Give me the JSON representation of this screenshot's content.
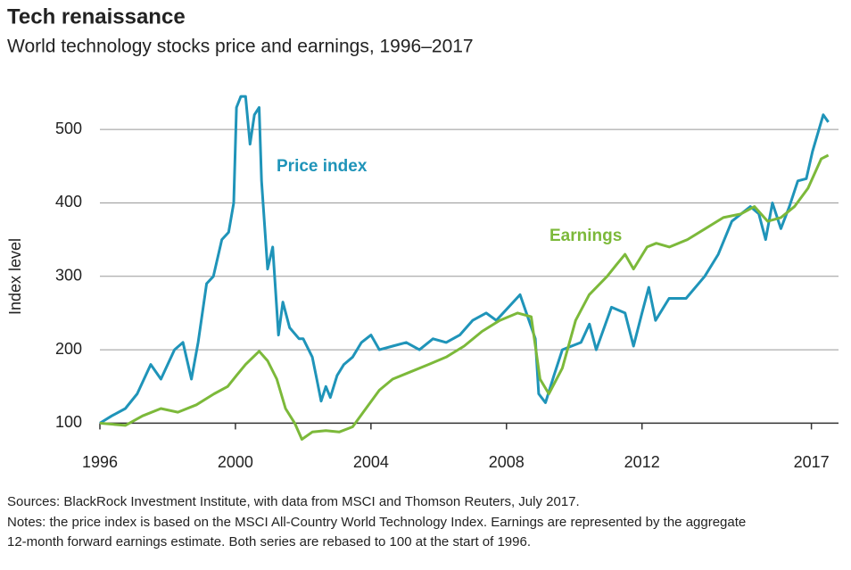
{
  "chart_data": {
    "type": "line",
    "title": "Tech renaissance",
    "subtitle": "World technology stocks price and earnings, 1996–2017",
    "ylabel": "Index level",
    "xlim": [
      1996,
      2017.8
    ],
    "xticks": [
      1996,
      2000,
      2004,
      2008,
      2012,
      2017
    ],
    "ylim": [
      75,
      550
    ],
    "yticks": [
      100,
      200,
      300,
      400,
      500
    ],
    "grid": true,
    "series": [
      {
        "name": "Price index",
        "color": "#1f94b9",
        "x": [
          1996,
          1996.35,
          1996.75,
          1997.1,
          1997.5,
          1997.8,
          1998.2,
          1998.45,
          1998.7,
          1998.9,
          1999.15,
          1999.35,
          1999.6,
          1999.8,
          1999.95,
          2000.03,
          2000.16,
          2000.3,
          2000.43,
          2000.56,
          2000.7,
          2000.77,
          2000.95,
          2001.1,
          2001.27,
          2001.4,
          2001.6,
          2001.88,
          2002.0,
          2002.27,
          2002.4,
          2002.53,
          2002.67,
          2002.8,
          2003.0,
          2003.2,
          2003.46,
          2003.72,
          2004.0,
          2004.25,
          2004.64,
          2005.04,
          2005.43,
          2005.83,
          2006.22,
          2006.62,
          2007.0,
          2007.4,
          2007.7,
          2008.4,
          2008.7,
          2008.85,
          2008.95,
          2009.15,
          2009.4,
          2009.65,
          2010.2,
          2010.45,
          2010.65,
          2011.1,
          2011.5,
          2011.75,
          2012.0,
          2012.2,
          2012.4,
          2012.8,
          2013.3,
          2013.85,
          2014.25,
          2014.65,
          2015.2,
          2015.45,
          2015.65,
          2015.85,
          2016.1,
          2016.35,
          2016.6,
          2016.85,
          2017.03,
          2017.35,
          2017.5
        ],
        "values": [
          100,
          110,
          120,
          140,
          180,
          160,
          200,
          210,
          160,
          210,
          290,
          300,
          350,
          360,
          400,
          530,
          545,
          545,
          480,
          520,
          530,
          430,
          310,
          340,
          220,
          265,
          230,
          215,
          215,
          190,
          160,
          130,
          150,
          135,
          165,
          180,
          190,
          210,
          220,
          200,
          205,
          210,
          200,
          215,
          210,
          220,
          240,
          250,
          240,
          275,
          235,
          215,
          140,
          128,
          165,
          200,
          210,
          235,
          200,
          258,
          250,
          205,
          250,
          285,
          240,
          270,
          270,
          300,
          330,
          375,
          395,
          385,
          350,
          400,
          365,
          395,
          430,
          433,
          470,
          520,
          510
        ]
      },
      {
        "name": "Earnings",
        "color": "#7cb93a",
        "x": [
          1996,
          1996.75,
          1997.26,
          1997.8,
          1998.3,
          1998.85,
          1999.37,
          1999.77,
          2000.03,
          2000.3,
          2000.7,
          2000.95,
          2001.22,
          2001.48,
          2001.75,
          2001.96,
          2002.27,
          2002.67,
          2003.06,
          2003.46,
          2003.85,
          2004.25,
          2004.64,
          2005.17,
          2005.7,
          2006.22,
          2006.75,
          2007.28,
          2007.8,
          2008.33,
          2008.73,
          2008.99,
          2009.25,
          2009.65,
          2010.04,
          2010.44,
          2010.97,
          2011.23,
          2011.5,
          2011.75,
          2012.15,
          2012.42,
          2012.81,
          2013.34,
          2013.87,
          2014.4,
          2014.92,
          2015.32,
          2015.71,
          2016.1,
          2016.5,
          2016.9,
          2017.29,
          2017.5
        ],
        "values": [
          100,
          97,
          110,
          120,
          115,
          125,
          140,
          150,
          165,
          180,
          198,
          185,
          160,
          120,
          100,
          78,
          88,
          90,
          88,
          95,
          120,
          145,
          160,
          170,
          180,
          190,
          205,
          225,
          240,
          250,
          245,
          160,
          140,
          175,
          240,
          275,
          300,
          315,
          330,
          310,
          340,
          345,
          340,
          350,
          365,
          380,
          385,
          395,
          375,
          380,
          395,
          420,
          460,
          465
        ]
      }
    ],
    "sources": "Sources: BlackRock Investment Institute, with data from MSCI and Thomson Reuters, July 2017.",
    "notes": [
      "Notes: the price index is based on the MSCI All-Country World Technology Index. Earnings are represented by the aggregate",
      "12-month forward earnings estimate. Both series are rebased to 100 at the start of 1996."
    ]
  }
}
